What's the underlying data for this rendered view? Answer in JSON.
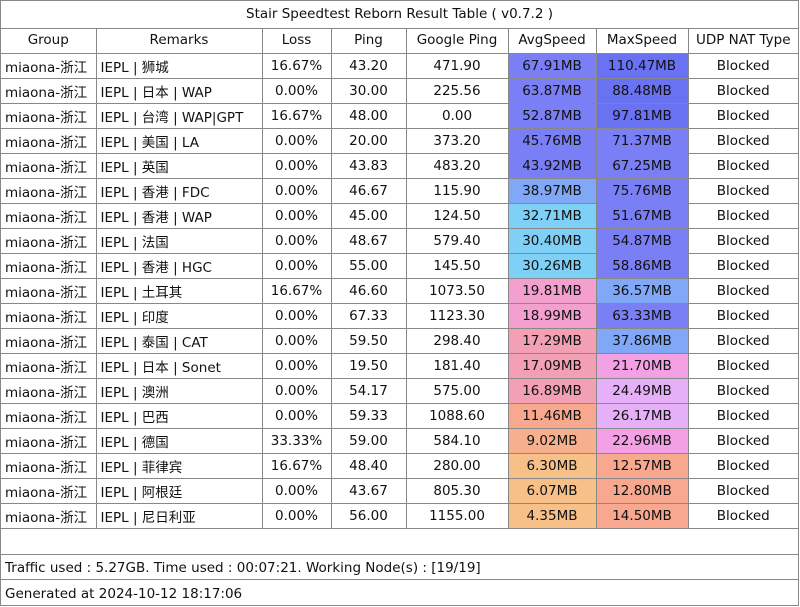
{
  "title": "Stair Speedtest Reborn Result Table ( v0.7.2 )",
  "headers": [
    "Group",
    "Remarks",
    "Loss",
    "Ping",
    "Google Ping",
    "AvgSpeed",
    "MaxSpeed",
    "UDP NAT Type"
  ],
  "rows": [
    {
      "group": "miaona-浙江",
      "remarks": "IEPL | 狮城",
      "loss": "16.67%",
      "ping": "43.20",
      "google_ping": "471.90",
      "avg": "67.91MB",
      "max": "110.47MB",
      "nat": "Blocked",
      "avg_color": "#7b7ff5",
      "max_color": "#6a72f4"
    },
    {
      "group": "miaona-浙江",
      "remarks": "IEPL | 日本 | WAP",
      "loss": "0.00%",
      "ping": "30.00",
      "google_ping": "225.56",
      "avg": "63.87MB",
      "max": "88.48MB",
      "nat": "Blocked",
      "avg_color": "#7b7ff5",
      "max_color": "#6a72f4"
    },
    {
      "group": "miaona-浙江",
      "remarks": "IEPL | 台湾 | WAP|GPT",
      "loss": "16.67%",
      "ping": "48.00",
      "google_ping": "0.00",
      "avg": "52.87MB",
      "max": "97.81MB",
      "nat": "Blocked",
      "avg_color": "#7b7ff5",
      "max_color": "#6a72f4"
    },
    {
      "group": "miaona-浙江",
      "remarks": "IEPL | 美国 | LA",
      "loss": "0.00%",
      "ping": "20.00",
      "google_ping": "373.20",
      "avg": "45.76MB",
      "max": "71.37MB",
      "nat": "Blocked",
      "avg_color": "#7b7ff5",
      "max_color": "#7b7ff5"
    },
    {
      "group": "miaona-浙江",
      "remarks": "IEPL | 英国",
      "loss": "0.00%",
      "ping": "43.83",
      "google_ping": "483.20",
      "avg": "43.92MB",
      "max": "67.25MB",
      "nat": "Blocked",
      "avg_color": "#7b7ff5",
      "max_color": "#7b7ff5"
    },
    {
      "group": "miaona-浙江",
      "remarks": "IEPL | 香港 | FDC",
      "loss": "0.00%",
      "ping": "46.67",
      "google_ping": "115.90",
      "avg": "38.97MB",
      "max": "75.76MB",
      "nat": "Blocked",
      "avg_color": "#80a8f7",
      "max_color": "#7b7ff5"
    },
    {
      "group": "miaona-浙江",
      "remarks": "IEPL | 香港 | WAP",
      "loss": "0.00%",
      "ping": "45.00",
      "google_ping": "124.50",
      "avg": "32.71MB",
      "max": "51.67MB",
      "nat": "Blocked",
      "avg_color": "#7fd0f6",
      "max_color": "#7b7ff5"
    },
    {
      "group": "miaona-浙江",
      "remarks": "IEPL | 法国",
      "loss": "0.00%",
      "ping": "48.67",
      "google_ping": "579.40",
      "avg": "30.40MB",
      "max": "54.87MB",
      "nat": "Blocked",
      "avg_color": "#7fd0f6",
      "max_color": "#7b7ff5"
    },
    {
      "group": "miaona-浙江",
      "remarks": "IEPL | 香港 | HGC",
      "loss": "0.00%",
      "ping": "55.00",
      "google_ping": "145.50",
      "avg": "30.26MB",
      "max": "58.86MB",
      "nat": "Blocked",
      "avg_color": "#7fd0f6",
      "max_color": "#7b7ff5"
    },
    {
      "group": "miaona-浙江",
      "remarks": "IEPL | 土耳其",
      "loss": "16.67%",
      "ping": "46.60",
      "google_ping": "1073.50",
      "avg": "19.81MB",
      "max": "36.57MB",
      "nat": "Blocked",
      "avg_color": "#f3a0cf",
      "max_color": "#80a8f7"
    },
    {
      "group": "miaona-浙江",
      "remarks": "IEPL | 印度",
      "loss": "0.00%",
      "ping": "67.33",
      "google_ping": "1123.30",
      "avg": "18.99MB",
      "max": "63.33MB",
      "nat": "Blocked",
      "avg_color": "#f3a0cf",
      "max_color": "#7b7ff5"
    },
    {
      "group": "miaona-浙江",
      "remarks": "IEPL | 泰国 | CAT",
      "loss": "0.00%",
      "ping": "59.50",
      "google_ping": "298.40",
      "avg": "17.29MB",
      "max": "37.86MB",
      "nat": "Blocked",
      "avg_color": "#f3a0b5",
      "max_color": "#80a8f7"
    },
    {
      "group": "miaona-浙江",
      "remarks": "IEPL | 日本 | Sonet",
      "loss": "0.00%",
      "ping": "19.50",
      "google_ping": "181.40",
      "avg": "17.09MB",
      "max": "21.70MB",
      "nat": "Blocked",
      "avg_color": "#f3a0b5",
      "max_color": "#f3a0e5"
    },
    {
      "group": "miaona-浙江",
      "remarks": "IEPL | 澳洲",
      "loss": "0.00%",
      "ping": "54.17",
      "google_ping": "575.00",
      "avg": "16.89MB",
      "max": "24.49MB",
      "nat": "Blocked",
      "avg_color": "#f3a0b5",
      "max_color": "#e5b0f7"
    },
    {
      "group": "miaona-浙江",
      "remarks": "IEPL | 巴西",
      "loss": "0.00%",
      "ping": "59.33",
      "google_ping": "1088.60",
      "avg": "11.46MB",
      "max": "26.17MB",
      "nat": "Blocked",
      "avg_color": "#f7a88e",
      "max_color": "#e5b0f7"
    },
    {
      "group": "miaona-浙江",
      "remarks": "IEPL | 德国",
      "loss": "33.33%",
      "ping": "59.00",
      "google_ping": "584.10",
      "avg": "9.02MB",
      "max": "22.96MB",
      "nat": "Blocked",
      "avg_color": "#f7b08e",
      "max_color": "#f3a0e5"
    },
    {
      "group": "miaona-浙江",
      "remarks": "IEPL | 菲律宾",
      "loss": "16.67%",
      "ping": "48.40",
      "google_ping": "280.00",
      "avg": "6.30MB",
      "max": "12.57MB",
      "nat": "Blocked",
      "avg_color": "#f7c089",
      "max_color": "#f7a88e"
    },
    {
      "group": "miaona-浙江",
      "remarks": "IEPL | 阿根廷",
      "loss": "0.00%",
      "ping": "43.67",
      "google_ping": "805.30",
      "avg": "6.07MB",
      "max": "12.80MB",
      "nat": "Blocked",
      "avg_color": "#f7c089",
      "max_color": "#f7a88e"
    },
    {
      "group": "miaona-浙江",
      "remarks": "IEPL | 尼日利亚",
      "loss": "0.00%",
      "ping": "56.00",
      "google_ping": "1155.00",
      "avg": "4.35MB",
      "max": "14.50MB",
      "nat": "Blocked",
      "avg_color": "#f7c089",
      "max_color": "#f7a88e"
    }
  ],
  "footer": {
    "traffic": "Traffic used : 5.27GB. Time used : 00:07:21. Working Node(s) : [19/19]",
    "generated": "Generated at 2024-10-12 18:17:06"
  }
}
